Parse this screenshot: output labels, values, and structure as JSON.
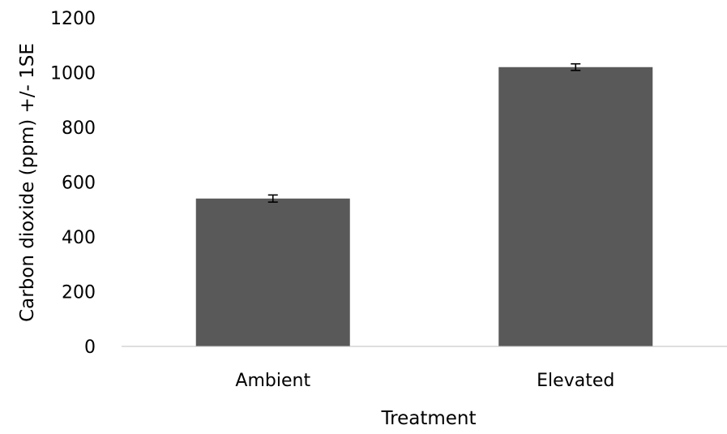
{
  "chart_data": {
    "type": "bar",
    "title": "",
    "xlabel": "Treatment",
    "ylabel": "Carbon dioxide (ppm) +/- 1SE",
    "categories": [
      "Ambient",
      "Elevated"
    ],
    "values": [
      540,
      1020
    ],
    "error": [
      13,
      12
    ],
    "ylim": [
      0,
      1200
    ],
    "yticks": [
      0,
      200,
      400,
      600,
      800,
      1000,
      1200
    ],
    "ytick_labels": [
      "0",
      "200",
      "400",
      "600",
      "800",
      "1000",
      "1200"
    ],
    "grid": false,
    "legend": "none",
    "colors": {
      "bar": "#595959",
      "axis": "#bfbfbf",
      "error": "#000000"
    }
  }
}
